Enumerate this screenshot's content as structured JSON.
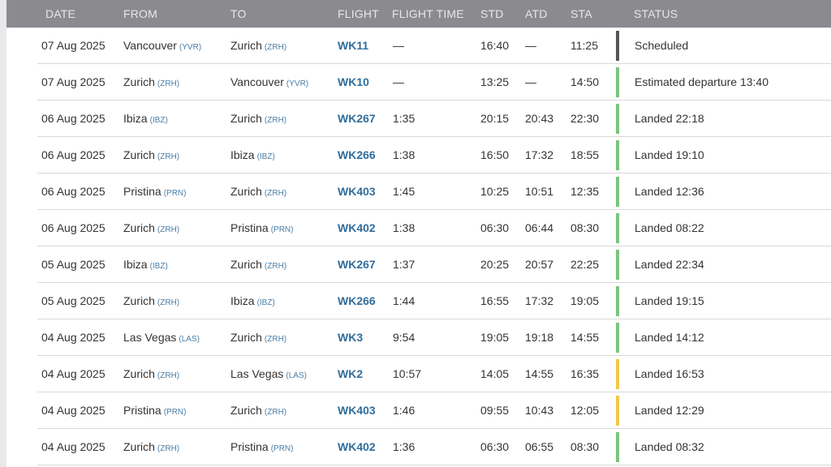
{
  "columns": {
    "date": "DATE",
    "from": "FROM",
    "to": "TO",
    "flight": "FLIGHT",
    "flight_time": "FLIGHT TIME",
    "std": "STD",
    "atd": "ATD",
    "sta": "STA",
    "status": "STATUS"
  },
  "status_colors": {
    "scheduled": "#555555",
    "green": "#7cc47f",
    "yellow": "#f0c84b"
  },
  "rows": [
    {
      "date": "07 Aug 2025",
      "from_city": "Vancouver",
      "from_code": "(YVR)",
      "to_city": "Zurich",
      "to_code": "(ZRH)",
      "flight": "WK11",
      "flight_time": "—",
      "std": "16:40",
      "atd": "—",
      "sta": "11:25",
      "status": "Scheduled",
      "status_color": "#555555"
    },
    {
      "date": "07 Aug 2025",
      "from_city": "Zurich",
      "from_code": "(ZRH)",
      "to_city": "Vancouver",
      "to_code": "(YVR)",
      "flight": "WK10",
      "flight_time": "—",
      "std": "13:25",
      "atd": "—",
      "sta": "14:50",
      "status": "Estimated departure 13:40",
      "status_color": "#7cc47f"
    },
    {
      "date": "06 Aug 2025",
      "from_city": "Ibiza",
      "from_code": "(IBZ)",
      "to_city": "Zurich",
      "to_code": "(ZRH)",
      "flight": "WK267",
      "flight_time": "1:35",
      "std": "20:15",
      "atd": "20:43",
      "sta": "22:30",
      "status": "Landed 22:18",
      "status_color": "#7cc47f"
    },
    {
      "date": "06 Aug 2025",
      "from_city": "Zurich",
      "from_code": "(ZRH)",
      "to_city": "Ibiza",
      "to_code": "(IBZ)",
      "flight": "WK266",
      "flight_time": "1:38",
      "std": "16:50",
      "atd": "17:32",
      "sta": "18:55",
      "status": "Landed 19:10",
      "status_color": "#7cc47f"
    },
    {
      "date": "06 Aug 2025",
      "from_city": "Pristina",
      "from_code": "(PRN)",
      "to_city": "Zurich",
      "to_code": "(ZRH)",
      "flight": "WK403",
      "flight_time": "1:45",
      "std": "10:25",
      "atd": "10:51",
      "sta": "12:35",
      "status": "Landed 12:36",
      "status_color": "#7cc47f"
    },
    {
      "date": "06 Aug 2025",
      "from_city": "Zurich",
      "from_code": "(ZRH)",
      "to_city": "Pristina",
      "to_code": "(PRN)",
      "flight": "WK402",
      "flight_time": "1:38",
      "std": "06:30",
      "atd": "06:44",
      "sta": "08:30",
      "status": "Landed 08:22",
      "status_color": "#7cc47f"
    },
    {
      "date": "05 Aug 2025",
      "from_city": "Ibiza",
      "from_code": "(IBZ)",
      "to_city": "Zurich",
      "to_code": "(ZRH)",
      "flight": "WK267",
      "flight_time": "1:37",
      "std": "20:25",
      "atd": "20:57",
      "sta": "22:25",
      "status": "Landed 22:34",
      "status_color": "#7cc47f"
    },
    {
      "date": "05 Aug 2025",
      "from_city": "Zurich",
      "from_code": "(ZRH)",
      "to_city": "Ibiza",
      "to_code": "(IBZ)",
      "flight": "WK266",
      "flight_time": "1:44",
      "std": "16:55",
      "atd": "17:32",
      "sta": "19:05",
      "status": "Landed 19:15",
      "status_color": "#7cc47f"
    },
    {
      "date": "04 Aug 2025",
      "from_city": "Las Vegas",
      "from_code": "(LAS)",
      "to_city": "Zurich",
      "to_code": "(ZRH)",
      "flight": "WK3",
      "flight_time": "9:54",
      "std": "19:05",
      "atd": "19:18",
      "sta": "14:55",
      "status": "Landed 14:12",
      "status_color": "#7cc47f"
    },
    {
      "date": "04 Aug 2025",
      "from_city": "Zurich",
      "from_code": "(ZRH)",
      "to_city": "Las Vegas",
      "to_code": "(LAS)",
      "flight": "WK2",
      "flight_time": "10:57",
      "std": "14:05",
      "atd": "14:55",
      "sta": "16:35",
      "status": "Landed 16:53",
      "status_color": "#f0c84b"
    },
    {
      "date": "04 Aug 2025",
      "from_city": "Pristina",
      "from_code": "(PRN)",
      "to_city": "Zurich",
      "to_code": "(ZRH)",
      "flight": "WK403",
      "flight_time": "1:46",
      "std": "09:55",
      "atd": "10:43",
      "sta": "12:05",
      "status": "Landed 12:29",
      "status_color": "#f0c84b"
    },
    {
      "date": "04 Aug 2025",
      "from_city": "Zurich",
      "from_code": "(ZRH)",
      "to_city": "Pristina",
      "to_code": "(PRN)",
      "flight": "WK402",
      "flight_time": "1:36",
      "std": "06:30",
      "atd": "06:55",
      "sta": "08:30",
      "status": "Landed 08:32",
      "status_color": "#7cc47f"
    }
  ]
}
